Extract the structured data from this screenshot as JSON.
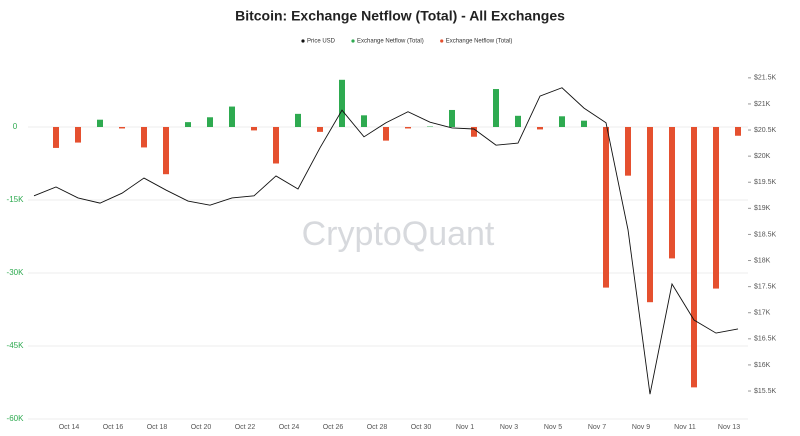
{
  "chart_data": {
    "type": "bar-line",
    "title": "Bitcoin: Exchange Netflow (Total) - All Exchanges",
    "watermark": "CryptoQuant",
    "categories": [
      "Oct 12",
      "Oct 13",
      "Oct 14",
      "Oct 15",
      "Oct 16",
      "Oct 17",
      "Oct 18",
      "Oct 19",
      "Oct 20",
      "Oct 21",
      "Oct 22",
      "Oct 23",
      "Oct 24",
      "Oct 25",
      "Oct 26",
      "Oct 27",
      "Oct 28",
      "Oct 29",
      "Oct 30",
      "Oct 31",
      "Nov 1",
      "Nov 2",
      "Nov 3",
      "Nov 4",
      "Nov 5",
      "Nov 6",
      "Nov 7",
      "Nov 8",
      "Nov 9",
      "Nov 10",
      "Nov 11",
      "Nov 12",
      "Nov 13"
    ],
    "xtick_indices": [
      2,
      4,
      6,
      8,
      10,
      12,
      14,
      16,
      18,
      20,
      22,
      24,
      26,
      28,
      30,
      32
    ],
    "series": [
      {
        "name": "Price USD",
        "color": "#111111",
        "type": "line",
        "axis": "y2",
        "values": [
          19240,
          19410,
          19200,
          19100,
          19290,
          19580,
          19350,
          19140,
          19060,
          19200,
          19240,
          19620,
          19370,
          20160,
          20880,
          20370,
          20640,
          20850,
          20650,
          20540,
          20520,
          20210,
          20250,
          21150,
          21310,
          20920,
          20640,
          18590,
          15440,
          17550,
          16860,
          16610,
          16690
        ]
      },
      {
        "name": "Exchange Netflow (Total)",
        "color": "#2eaa50",
        "type": "bar",
        "values": [
          null,
          null,
          null,
          1500,
          null,
          null,
          null,
          1000,
          2000,
          4200,
          null,
          null,
          2700,
          null,
          9700,
          2400,
          null,
          null,
          100,
          3500,
          null,
          7800,
          2300,
          null,
          2200,
          1300,
          null,
          null,
          null,
          null,
          null,
          null,
          null
        ]
      },
      {
        "name": "Exchange Netflow (Total)",
        "color": "#e5502f",
        "type": "bar",
        "values": [
          null,
          -4300,
          -3200,
          null,
          -300,
          -4200,
          -9700,
          null,
          null,
          null,
          -700,
          -7500,
          null,
          -1000,
          null,
          null,
          -2800,
          -300,
          null,
          null,
          -2000,
          null,
          null,
          -500,
          null,
          null,
          -33000,
          -10000,
          -36000,
          -27000,
          -53500,
          -33200,
          -1800
        ]
      }
    ],
    "ylim": [
      -60000,
      12000
    ],
    "yticks": [
      {
        "value": 0,
        "label": "0"
      },
      {
        "value": -15000,
        "label": "-15K"
      },
      {
        "value": -30000,
        "label": "-30K"
      },
      {
        "value": -45000,
        "label": "-45K"
      },
      {
        "value": -60000,
        "label": "-60K"
      }
    ],
    "y2lim": [
      14964,
      21677
    ],
    "y2ticks": [
      {
        "value": 21500,
        "label": "$21.5K"
      },
      {
        "value": 21000,
        "label": "$21K"
      },
      {
        "value": 20500,
        "label": "$20.5K"
      },
      {
        "value": 20000,
        "label": "$20K"
      },
      {
        "value": 19500,
        "label": "$19.5K"
      },
      {
        "value": 19000,
        "label": "$19K"
      },
      {
        "value": 18500,
        "label": "$18.5K"
      },
      {
        "value": 18000,
        "label": "$18K"
      },
      {
        "value": 17500,
        "label": "$17.5K"
      },
      {
        "value": 17000,
        "label": "$17K"
      },
      {
        "value": 16500,
        "label": "$16.5K"
      },
      {
        "value": 16000,
        "label": "$16K"
      },
      {
        "value": 15500,
        "label": "$15.5K"
      }
    ],
    "yaxis_color": "#2eaa50",
    "grid": true
  }
}
